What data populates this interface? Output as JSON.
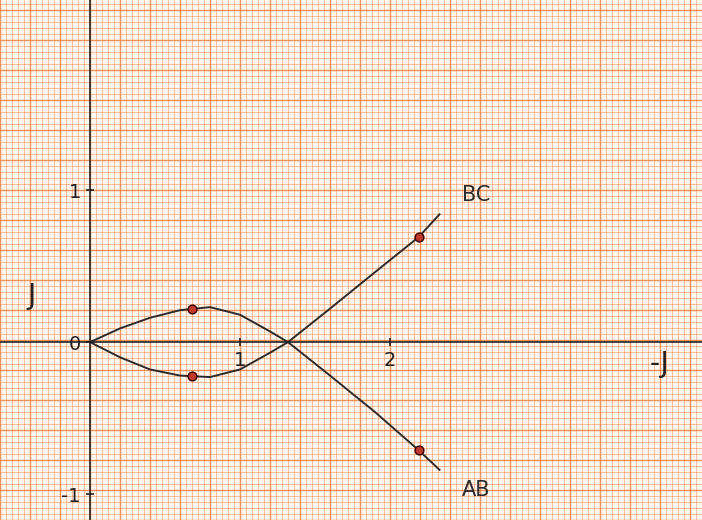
{
  "chart_data": {
    "type": "line",
    "x_label": "-J",
    "y_label": "J",
    "xlim": [
      -0.6,
      4.08
    ],
    "ylim": [
      -1.17,
      2.25
    ],
    "xticks": [
      1,
      2
    ],
    "yticks": [
      -1,
      0,
      1
    ],
    "grid": true,
    "series": [
      {
        "name": "AB",
        "color": "#2b2b2b",
        "line_style": "solid",
        "x": [
          0,
          0.2,
          0.4,
          0.6,
          0.8,
          1.0,
          1.2,
          1.32,
          1.6,
          1.9,
          2.19,
          2.33
        ],
        "values": [
          0,
          0.09,
          0.16,
          0.21,
          0.23,
          0.18,
          0.07,
          0,
          -0.22,
          -0.46,
          -0.71,
          -0.84
        ]
      },
      {
        "name": "BC",
        "color": "#2b2b2b",
        "line_style": "solid",
        "x": [
          0,
          0.2,
          0.4,
          0.6,
          0.8,
          1.0,
          1.2,
          1.32,
          1.6,
          1.9,
          2.19,
          2.33
        ],
        "values": [
          0,
          -0.1,
          -0.18,
          -0.22,
          -0.23,
          -0.18,
          -0.07,
          0,
          0.22,
          0.46,
          0.69,
          0.84
        ]
      }
    ],
    "points": {
      "x": [
        0.68,
        0.68,
        2.19,
        2.19
      ],
      "y": [
        0.22,
        -0.22,
        0.69,
        -0.71
      ],
      "color": "#c0392b",
      "marker": "o"
    }
  }
}
